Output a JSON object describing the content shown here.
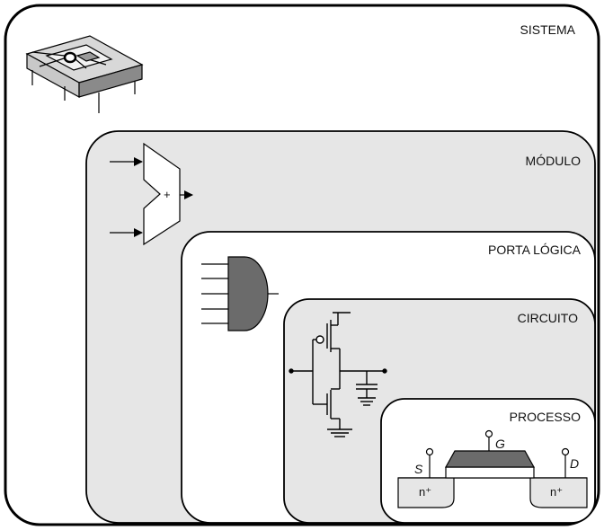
{
  "levels": {
    "sistema": "SISTEMA",
    "modulo": "MÓDULO",
    "porta": "PORTA LÓGICA",
    "circuito": "CIRCUITO",
    "processo": "PROCESSO"
  },
  "adder_symbol": "+",
  "transistor": {
    "source": "S",
    "gate": "G",
    "drain": "D",
    "n_left": "n⁺",
    "n_right": "n⁺"
  },
  "icons": [
    "chip-package-icon",
    "adder-icon",
    "and-gate-icon",
    "cmos-inverter-icon",
    "mosfet-cross-section-icon"
  ],
  "colors": {
    "panel_gray": "#e6e6e6",
    "white": "#ffffff",
    "gate_dark": "#6b6b6b",
    "stroke": "#000000"
  }
}
